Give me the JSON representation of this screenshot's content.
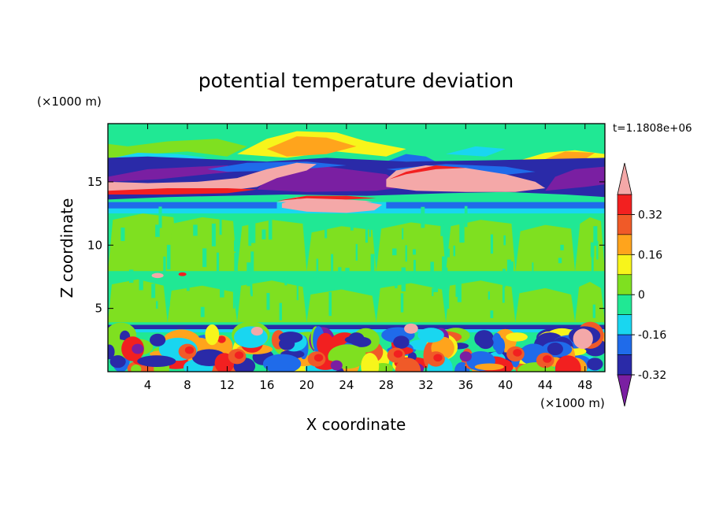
{
  "chart_data": {
    "type": "heatmap",
    "title": "potential temperature deviation",
    "xlabel": "X coordinate",
    "ylabel": "Z coordinate",
    "x_unit": "(×1000 m)",
    "y_unit": "(×1000 m)",
    "time_label": "t=1.1808e+06",
    "xlim": [
      0,
      50
    ],
    "ylim": [
      0,
      19.6
    ],
    "x_ticks": [
      "4",
      "8",
      "12",
      "16",
      "20",
      "24",
      "28",
      "32",
      "36",
      "40",
      "44",
      "48"
    ],
    "y_ticks": [
      "5",
      "10",
      "15"
    ],
    "colorbar": {
      "labels": [
        "0.32",
        "0.16",
        "0",
        "-0.16",
        "-0.32"
      ],
      "label_values": [
        0.32,
        0.16,
        0,
        -0.16,
        -0.32
      ],
      "levels": [
        -0.4,
        -0.32,
        -0.24,
        -0.16,
        -0.08,
        0,
        0.08,
        0.16,
        0.24,
        0.32,
        0.4
      ],
      "colors": [
        "#7a1fa2",
        "#2a2aa8",
        "#1f6bea",
        "#19d6f0",
        "#20e894",
        "#7fe020",
        "#f7f51b",
        "#ffa41c",
        "#f05a28",
        "#f22020",
        "#f4a8a8"
      ],
      "extend": "both"
    },
    "bands": [
      {
        "z": [
          0.0,
          3.3
        ],
        "level": "mixed -0.40 to 0.40 (convective)"
      },
      {
        "z": [
          3.3,
          3.7
        ],
        "level": "-0.32"
      },
      {
        "z": [
          3.7,
          7.5
        ],
        "level": "0 to 0.08"
      },
      {
        "z": [
          7.5,
          7.9
        ],
        "level": "0"
      },
      {
        "z": [
          7.9,
          12.5
        ],
        "level": "0 to 0.08"
      },
      {
        "z": [
          12.5,
          13.4
        ],
        "level": "-0.16"
      },
      {
        "z": [
          13.4,
          14.8
        ],
        "level": "-0.40 / >0.40"
      },
      {
        "z": [
          14.8,
          16.6
        ],
        "level": "-0.40 / >0.40"
      },
      {
        "z": [
          16.6,
          19.6
        ],
        "level": "-0.16 to 0.24"
      }
    ]
  }
}
